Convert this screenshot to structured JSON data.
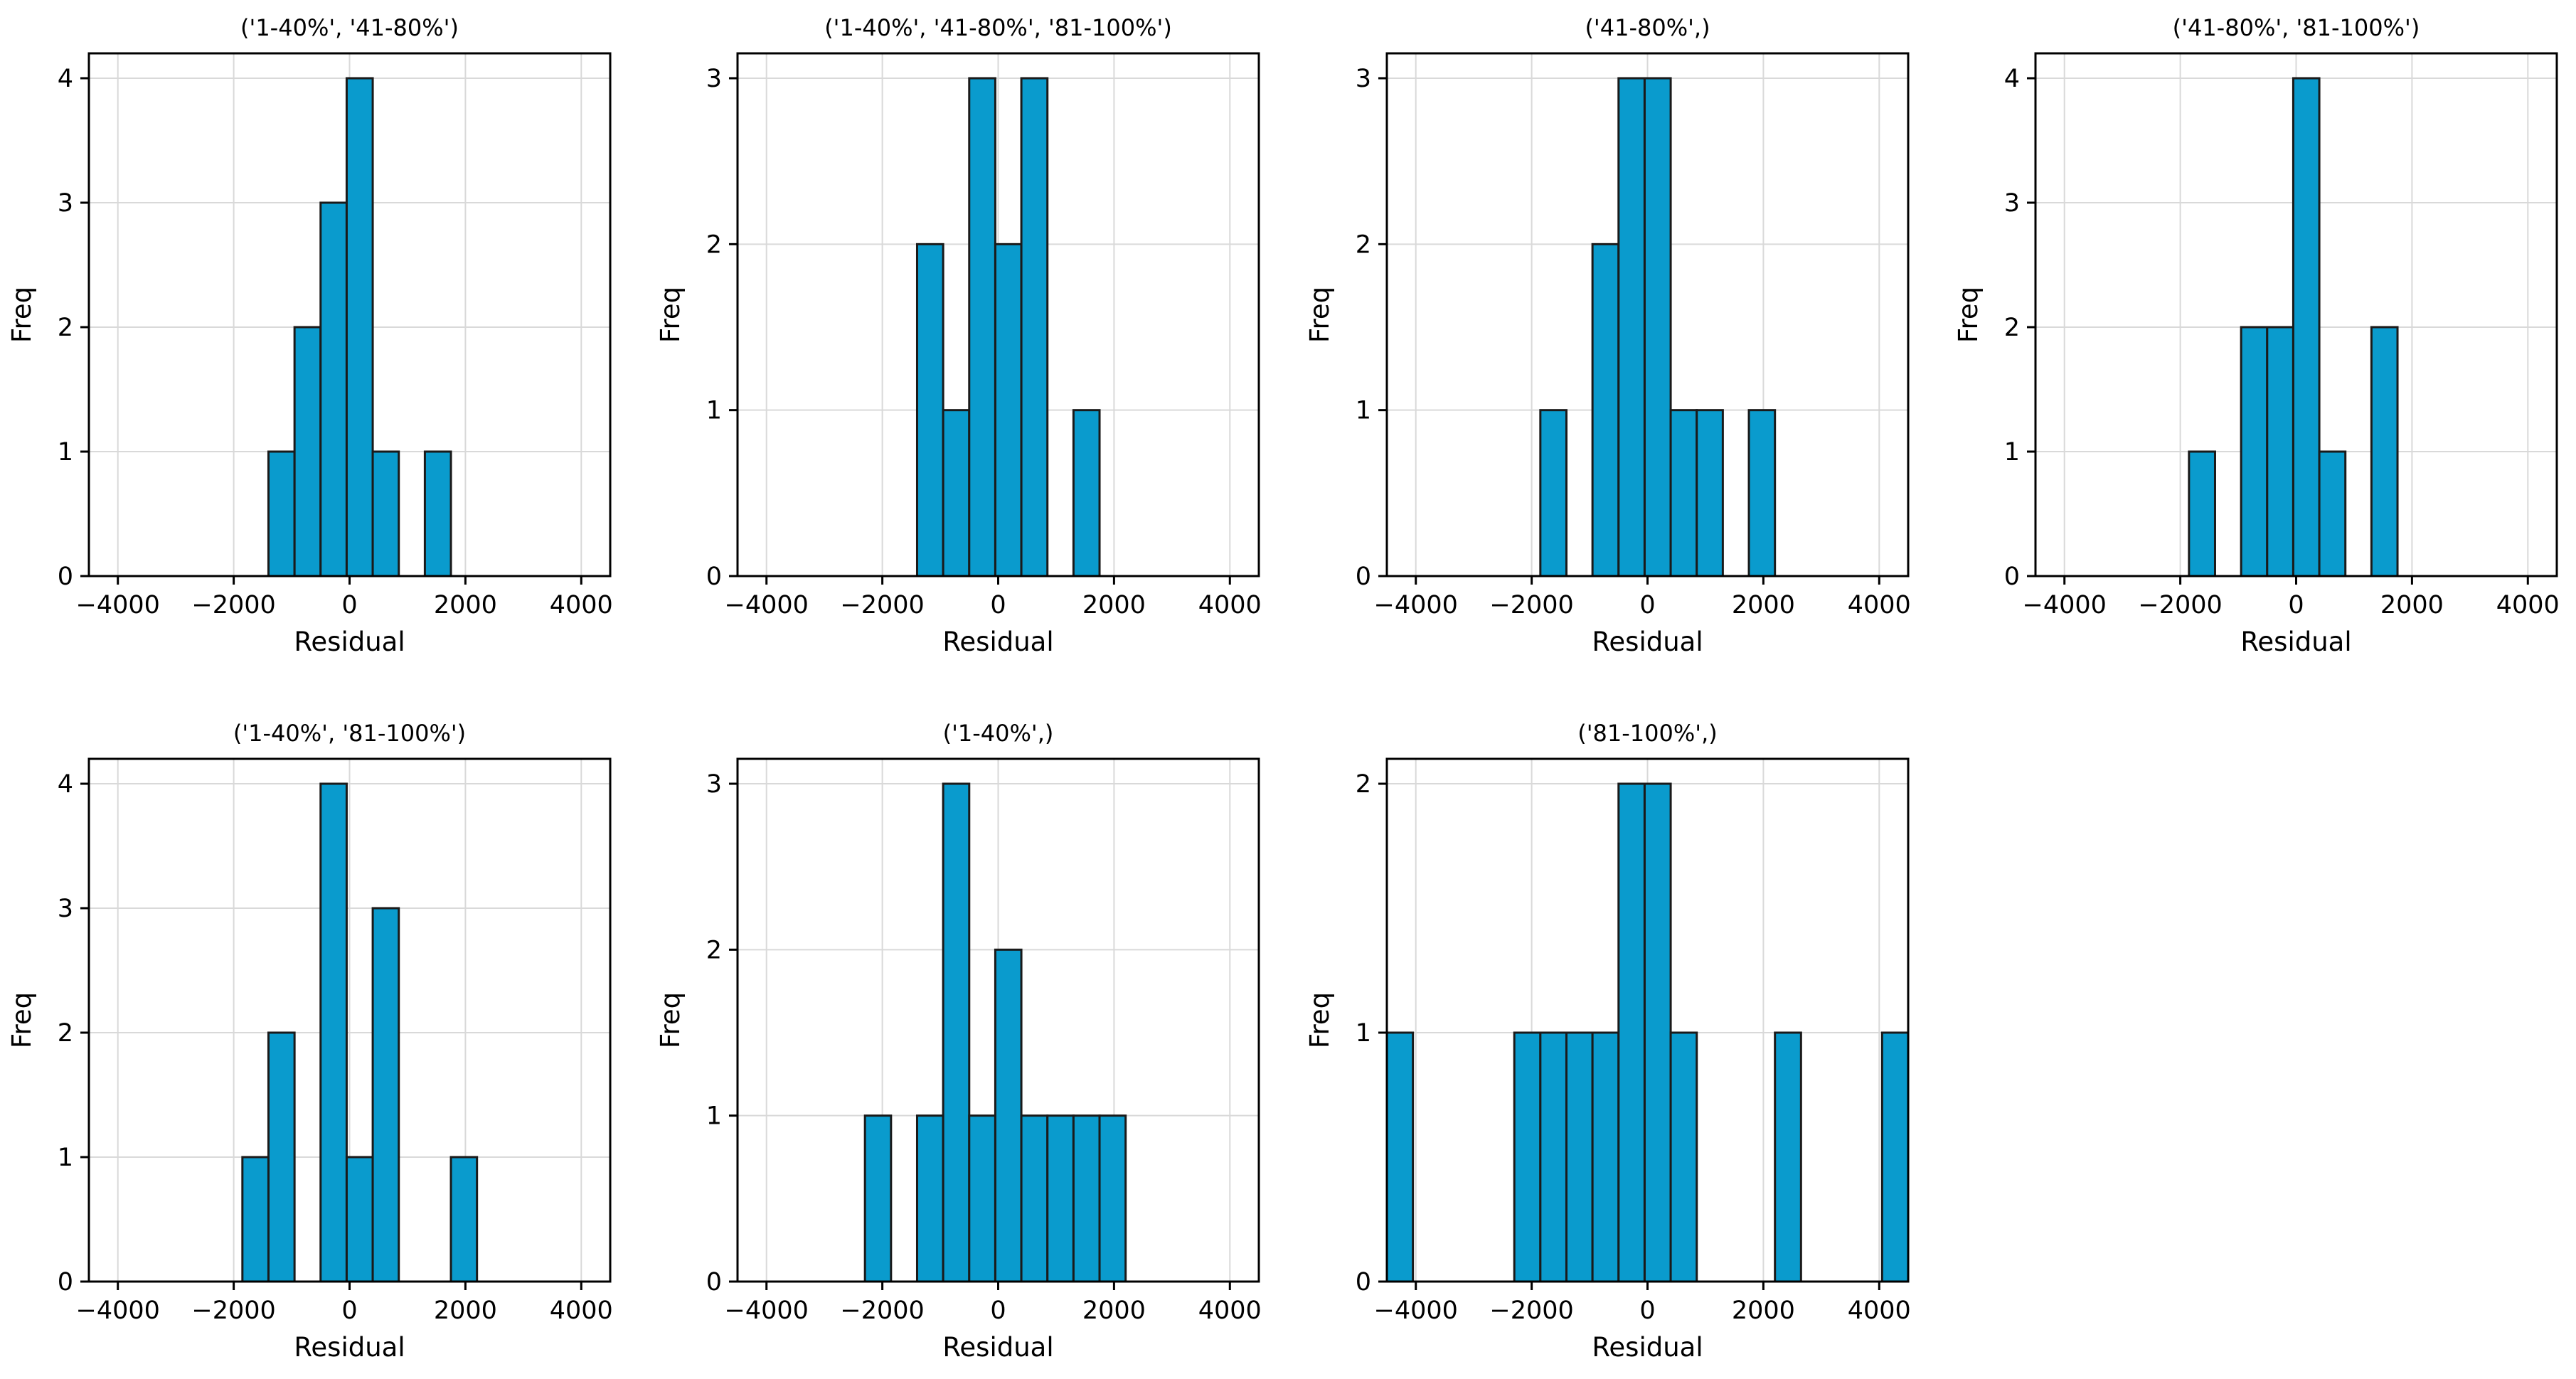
{
  "chart_data": [
    {
      "type": "bar",
      "title": "('1-40%', '41-80%')",
      "xlabel": "Residual",
      "ylabel": "Freq",
      "xlim": [
        -4500,
        4500
      ],
      "ylim": [
        0,
        4.2
      ],
      "xticks": [
        -4000,
        -2000,
        0,
        2000,
        4000
      ],
      "xticklabels": [
        "−4000",
        "−2000",
        "0",
        "2000",
        "4000"
      ],
      "yticks": [
        0,
        1,
        2,
        3,
        4
      ],
      "bin_width": 450,
      "bins": [
        {
          "start": -1400,
          "end": -950,
          "count": 1
        },
        {
          "start": -950,
          "end": -500,
          "count": 2
        },
        {
          "start": -500,
          "end": -50,
          "count": 3
        },
        {
          "start": -50,
          "end": 400,
          "count": 4
        },
        {
          "start": 400,
          "end": 850,
          "count": 1
        },
        {
          "start": 1300,
          "end": 1750,
          "count": 1
        }
      ]
    },
    {
      "type": "bar",
      "title": "('1-40%', '41-80%', '81-100%')",
      "xlabel": "Residual",
      "ylabel": "Freq",
      "xlim": [
        -4500,
        4500
      ],
      "ylim": [
        0,
        3.15
      ],
      "xticks": [
        -4000,
        -2000,
        0,
        2000,
        4000
      ],
      "xticklabels": [
        "−4000",
        "−2000",
        "0",
        "2000",
        "4000"
      ],
      "yticks": [
        0,
        1,
        2,
        3
      ],
      "bin_width": 450,
      "bins": [
        {
          "start": -1400,
          "end": -950,
          "count": 2
        },
        {
          "start": -950,
          "end": -500,
          "count": 1
        },
        {
          "start": -500,
          "end": -50,
          "count": 3
        },
        {
          "start": -50,
          "end": 400,
          "count": 2
        },
        {
          "start": 400,
          "end": 850,
          "count": 3
        },
        {
          "start": 1300,
          "end": 1750,
          "count": 1
        }
      ]
    },
    {
      "type": "bar",
      "title": "('41-80%',)",
      "xlabel": "Residual",
      "ylabel": "Freq",
      "xlim": [
        -4500,
        4500
      ],
      "ylim": [
        0,
        3.15
      ],
      "xticks": [
        -4000,
        -2000,
        0,
        2000,
        4000
      ],
      "xticklabels": [
        "−4000",
        "−2000",
        "0",
        "2000",
        "4000"
      ],
      "yticks": [
        0,
        1,
        2,
        3
      ],
      "bin_width": 450,
      "bins": [
        {
          "start": -1850,
          "end": -1400,
          "count": 1
        },
        {
          "start": -950,
          "end": -500,
          "count": 2
        },
        {
          "start": -500,
          "end": -50,
          "count": 3
        },
        {
          "start": -50,
          "end": 400,
          "count": 3
        },
        {
          "start": 400,
          "end": 850,
          "count": 1
        },
        {
          "start": 850,
          "end": 1300,
          "count": 1
        },
        {
          "start": 1750,
          "end": 2200,
          "count": 1
        }
      ]
    },
    {
      "type": "bar",
      "title": "('41-80%', '81-100%')",
      "xlabel": "Residual",
      "ylabel": "Freq",
      "xlim": [
        -4500,
        4500
      ],
      "ylim": [
        0,
        4.2
      ],
      "xticks": [
        -4000,
        -2000,
        0,
        2000,
        4000
      ],
      "xticklabels": [
        "−4000",
        "−2000",
        "0",
        "2000",
        "4000"
      ],
      "yticks": [
        0,
        1,
        2,
        3,
        4
      ],
      "bin_width": 450,
      "bins": [
        {
          "start": -1850,
          "end": -1400,
          "count": 1
        },
        {
          "start": -950,
          "end": -500,
          "count": 2
        },
        {
          "start": -500,
          "end": -50,
          "count": 2
        },
        {
          "start": -50,
          "end": 400,
          "count": 4
        },
        {
          "start": 400,
          "end": 850,
          "count": 1
        },
        {
          "start": 1300,
          "end": 1750,
          "count": 2
        }
      ]
    },
    {
      "type": "bar",
      "title": "('1-40%', '81-100%')",
      "xlabel": "Residual",
      "ylabel": "Freq",
      "xlim": [
        -4500,
        4500
      ],
      "ylim": [
        0,
        4.2
      ],
      "xticks": [
        -4000,
        -2000,
        0,
        2000,
        4000
      ],
      "xticklabels": [
        "−4000",
        "−2000",
        "0",
        "2000",
        "4000"
      ],
      "yticks": [
        0,
        1,
        2,
        3,
        4
      ],
      "bin_width": 450,
      "bins": [
        {
          "start": -1850,
          "end": -1400,
          "count": 1
        },
        {
          "start": -1400,
          "end": -950,
          "count": 2
        },
        {
          "start": -500,
          "end": -50,
          "count": 4
        },
        {
          "start": -50,
          "end": 400,
          "count": 1
        },
        {
          "start": 400,
          "end": 850,
          "count": 3
        },
        {
          "start": 1750,
          "end": 2200,
          "count": 1
        }
      ]
    },
    {
      "type": "bar",
      "title": "('1-40%',)",
      "xlabel": "Residual",
      "ylabel": "Freq",
      "xlim": [
        -4500,
        4500
      ],
      "ylim": [
        0,
        3.15
      ],
      "xticks": [
        -4000,
        -2000,
        0,
        2000,
        4000
      ],
      "xticklabels": [
        "−4000",
        "−2000",
        "0",
        "2000",
        "4000"
      ],
      "yticks": [
        0,
        1,
        2,
        3
      ],
      "bin_width": 450,
      "bins": [
        {
          "start": -2300,
          "end": -1850,
          "count": 1
        },
        {
          "start": -1400,
          "end": -950,
          "count": 1
        },
        {
          "start": -950,
          "end": -500,
          "count": 3
        },
        {
          "start": -500,
          "end": -50,
          "count": 1
        },
        {
          "start": -50,
          "end": 400,
          "count": 2
        },
        {
          "start": 400,
          "end": 850,
          "count": 1
        },
        {
          "start": 850,
          "end": 1300,
          "count": 1
        },
        {
          "start": 1300,
          "end": 1750,
          "count": 1
        },
        {
          "start": 1750,
          "end": 2200,
          "count": 1
        }
      ]
    },
    {
      "type": "bar",
      "title": "('81-100%',)",
      "xlabel": "Residual",
      "ylabel": "Freq",
      "xlim": [
        -4500,
        4500
      ],
      "ylim": [
        0,
        2.1
      ],
      "xticks": [
        -4000,
        -2000,
        0,
        2000,
        4000
      ],
      "xticklabels": [
        "−4000",
        "−2000",
        "0",
        "2000",
        "4000"
      ],
      "yticks": [
        0,
        1,
        2
      ],
      "bin_width": 450,
      "bins": [
        {
          "start": -4500,
          "end": -4050,
          "count": 1
        },
        {
          "start": -2300,
          "end": -1850,
          "count": 1
        },
        {
          "start": -1850,
          "end": -1400,
          "count": 1
        },
        {
          "start": -1400,
          "end": -950,
          "count": 1
        },
        {
          "start": -950,
          "end": -500,
          "count": 1
        },
        {
          "start": -500,
          "end": -50,
          "count": 2
        },
        {
          "start": -50,
          "end": 400,
          "count": 2
        },
        {
          "start": 400,
          "end": 850,
          "count": 1
        },
        {
          "start": 2200,
          "end": 2650,
          "count": 1
        },
        {
          "start": 4050,
          "end": 4500,
          "count": 1
        }
      ]
    }
  ],
  "colors": {
    "bar_fill": "#0a9bcd",
    "bar_edge": "#1a1a1a",
    "grid": "#d9d9d9"
  }
}
